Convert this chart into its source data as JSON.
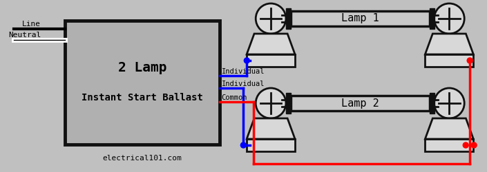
{
  "bg_color": "#c0c0c0",
  "ballast_text1": "2 Lamp",
  "ballast_text2": "Instant Start Ballast",
  "website": "electrical101.com",
  "line_label": "Line",
  "neutral_label": "Neutral",
  "wire_blue": "#0000ff",
  "wire_red": "#ff0000",
  "label_individual1": "Individual",
  "label_individual2": "Individual",
  "label_common": "Common",
  "lamp1_label": "Lamp 1",
  "lamp2_label": "Lamp 2",
  "holder_face": "#d8d8d8",
  "holder_edge": "#111111",
  "ballast_face": "#b0b0b0",
  "lamp_face": "#c8c8c8",
  "lamp_cap": "#111111"
}
